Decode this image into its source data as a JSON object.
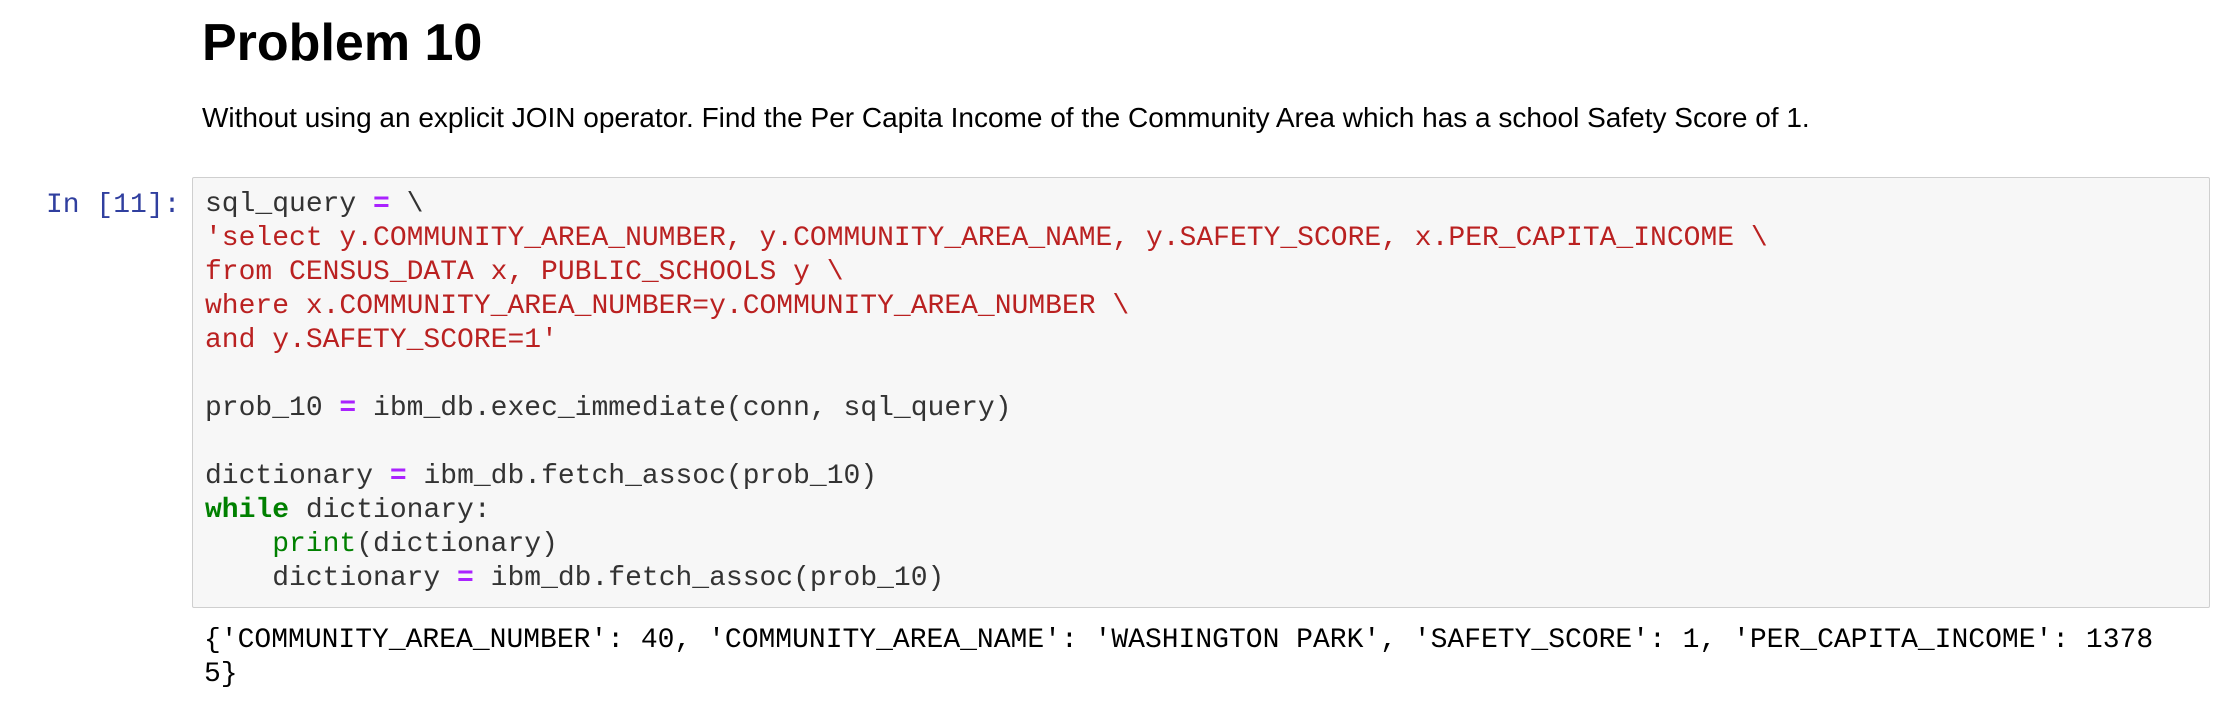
{
  "markdown": {
    "heading": "Problem 10",
    "description": "Without using an explicit JOIN operator. Find the Per Capita Income of the Community Area which has a school Safety Score of 1."
  },
  "cell": {
    "prompt": "In [11]:",
    "code": {
      "l1": {
        "a": "sql_query ",
        "b": "=",
        "c": " \\"
      },
      "l2": {
        "a": "'select y.COMMUNITY_AREA_NUMBER, y.COMMUNITY_AREA_NAME, y.SAFETY_SCORE, x.PER_CAPITA_INCOME \\"
      },
      "l3": {
        "a": "from CENSUS_DATA x, PUBLIC_SCHOOLS y \\"
      },
      "l4": {
        "a": "where x.COMMUNITY_AREA_NUMBER=y.COMMUNITY_AREA_NUMBER \\"
      },
      "l5": {
        "a": "and y.SAFETY_SCORE=1'"
      },
      "l7": {
        "a": "prob_10 ",
        "b": "=",
        "c": " ibm_db.exec_immediate(conn, sql_query)"
      },
      "l9": {
        "a": "dictionary ",
        "b": "=",
        "c": " ibm_db.fetch_assoc(prob_10)"
      },
      "l10": {
        "a": "while",
        "b": " dictionary:"
      },
      "l11": {
        "a": "    ",
        "b": "print",
        "c": "(dictionary)"
      },
      "l12": {
        "a": "    dictionary ",
        "b": "=",
        "c": " ibm_db.fetch_assoc(prob_10)"
      }
    },
    "output": {
      "line1": "{'COMMUNITY_AREA_NUMBER': 40, 'COMMUNITY_AREA_NAME': 'WASHINGTON PARK', 'SAFETY_SCORE': 1, 'PER_CAPITA_INCOME': 1378",
      "line2": "5}"
    }
  },
  "colors": {
    "prompt": "#303f9f",
    "string": "#ba2121",
    "operator": "#aa22ff",
    "keyword": "#008000",
    "cell_background": "#f7f7f7",
    "cell_border": "#cfcfcf"
  }
}
